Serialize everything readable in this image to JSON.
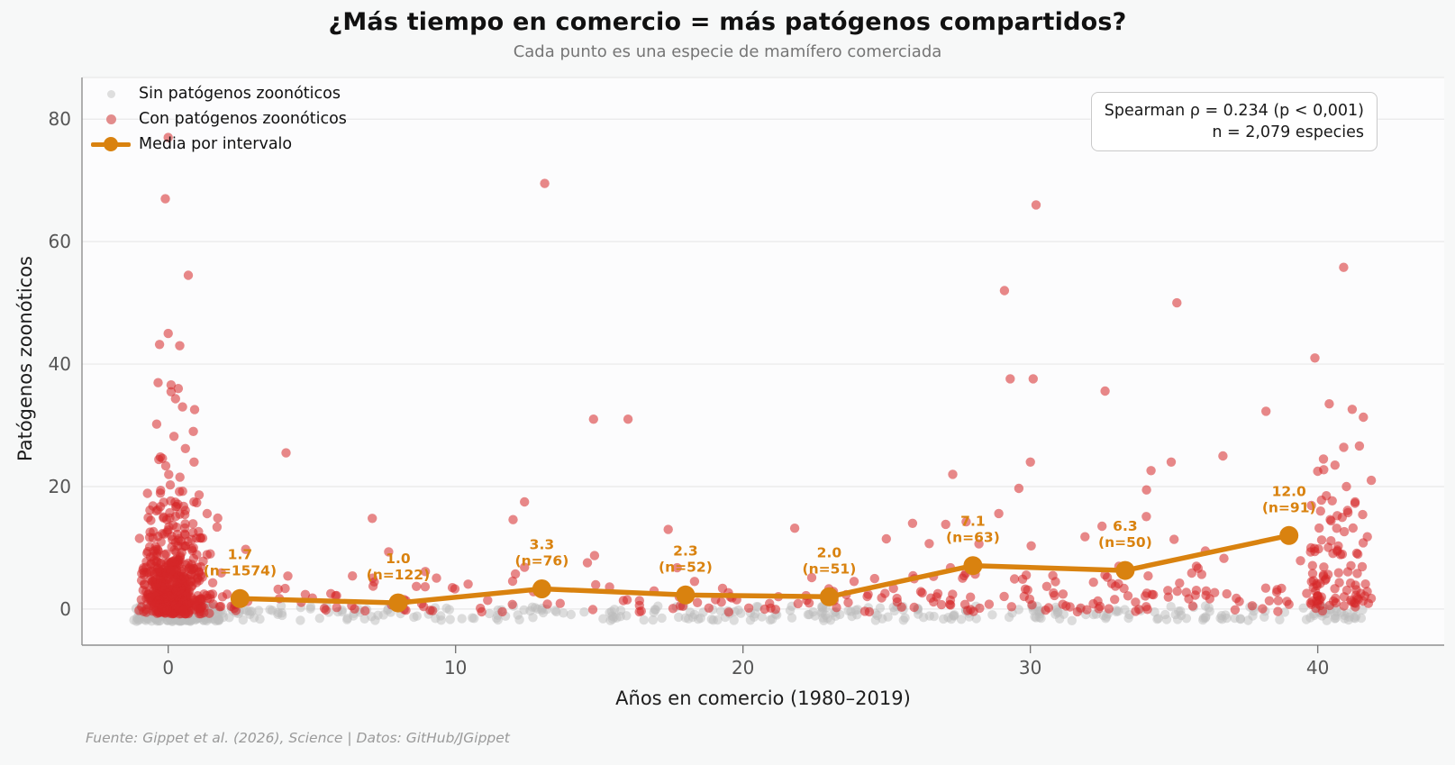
{
  "header": {
    "title": "¿Más tiempo en comercio = más patógenos compartidos?",
    "subtitle": "Cada punto es una especie de mamífero comerciada"
  },
  "legend": {
    "items": [
      {
        "id": "sin",
        "label": "Sin patógenos zoonóticos",
        "marker": "gray-dot",
        "color": "#bbbbbb"
      },
      {
        "id": "con",
        "label": "Con patógenos zoonóticos",
        "marker": "red-dot",
        "color": "#d62728"
      },
      {
        "id": "media",
        "label": "Media por intervalo",
        "marker": "orange-line-dot",
        "color": "#d9820f"
      }
    ]
  },
  "stats_box": {
    "line1": "Spearman ρ = 0.234 (p < 0,001)",
    "line2": "n = 2,079 especies"
  },
  "axes": {
    "xlabel": "Años en comercio (1980–2019)",
    "ylabel": "Patógenos zoonóticos"
  },
  "footer": {
    "source": "Fuente: Gippet et al. (2026), Science | Datos: GitHub/JGippet"
  },
  "colors": {
    "background": "#f7f8f8",
    "plot_background": "#fcfcfd",
    "grid": "#e9e9e9",
    "spine": "#8f8f8f",
    "red": "#d62728",
    "gray": "#bbbbbb",
    "orange": "#d9820f"
  },
  "chart_data": {
    "type": "scatter",
    "title": "¿Más tiempo en comercio = más patógenos compartidos?",
    "subtitle": "Cada punto es una especie de mamífero comerciada",
    "xlabel": "Años en comercio (1980–2019)",
    "ylabel": "Patógenos zoonóticos",
    "xlim": [
      -3.0,
      44.4
    ],
    "ylim": [
      -5.9,
      86.8
    ],
    "x_ticks": [
      0,
      10,
      20,
      30,
      40
    ],
    "y_ticks": [
      0,
      20,
      40,
      60,
      80
    ],
    "grid": "horizontal-only",
    "legend_position": "top-left",
    "stats": {
      "spearman_rho": 0.234,
      "p": "< 0,001",
      "n_species": 2079
    },
    "series": [
      {
        "name": "Sin patógenos zoonóticos",
        "type": "scatter",
        "color": "#bbbbbb"
      },
      {
        "name": "Con patógenos zoonóticos",
        "type": "scatter",
        "color": "#d62728"
      },
      {
        "name": "Media por intervalo",
        "type": "line",
        "color": "#d9820f"
      }
    ],
    "trend": {
      "bin_width_years": 5,
      "points": [
        {
          "x": 2.5,
          "y": 1.7,
          "n": 1574,
          "value_label": "1.7",
          "n_label": "(n=1574)"
        },
        {
          "x": 8.0,
          "y": 1.0,
          "n": 122,
          "value_label": "1.0",
          "n_label": "(n=122)"
        },
        {
          "x": 13.0,
          "y": 3.3,
          "n": 76,
          "value_label": "3.3",
          "n_label": "(n=76)"
        },
        {
          "x": 18.0,
          "y": 2.3,
          "n": 52,
          "value_label": "2.3",
          "n_label": "(n=52)"
        },
        {
          "x": 23.0,
          "y": 2.0,
          "n": 51,
          "value_label": "2.0",
          "n_label": "(n=51)"
        },
        {
          "x": 28.0,
          "y": 7.1,
          "n": 63,
          "value_label": "7.1",
          "n_label": "(n=63)"
        },
        {
          "x": 33.3,
          "y": 6.3,
          "n": 50,
          "value_label": "6.3",
          "n_label": "(n=50)"
        },
        {
          "x": 39.0,
          "y": 12.0,
          "n": 91,
          "value_label": "12.0",
          "n_label": "(n=91)"
        }
      ]
    },
    "red_outliers": [
      [
        0,
        77
      ],
      [
        -0.1,
        67
      ],
      [
        0.7,
        54.5
      ],
      [
        0,
        45
      ],
      [
        -0.3,
        43.2
      ],
      [
        0.4,
        43
      ],
      [
        0.1,
        36.6
      ],
      [
        0.35,
        36.0
      ],
      [
        0.5,
        33
      ],
      [
        -0.4,
        30.2
      ],
      [
        0.2,
        28.2
      ],
      [
        0.6,
        26.2
      ],
      [
        -0.2,
        24.6
      ],
      [
        0.9,
        24
      ],
      [
        4.1,
        25.5
      ],
      [
        7.1,
        14.8
      ],
      [
        13.1,
        69.5
      ],
      [
        12.4,
        17.5
      ],
      [
        12.0,
        14.6
      ],
      [
        14.8,
        31
      ],
      [
        16,
        31
      ],
      [
        17.4,
        13
      ],
      [
        21.8,
        13.2
      ],
      [
        27.3,
        22
      ],
      [
        25.9,
        14
      ],
      [
        28.9,
        15.6
      ],
      [
        29.1,
        52
      ],
      [
        30.2,
        66
      ],
      [
        29.3,
        37.6
      ],
      [
        30.1,
        37.6
      ],
      [
        30.0,
        24
      ],
      [
        29.6,
        19.7
      ],
      [
        31.9,
        11.8
      ],
      [
        32.6,
        35.6
      ],
      [
        34.2,
        22.6
      ],
      [
        34.9,
        24
      ],
      [
        35.1,
        50
      ],
      [
        36.7,
        25
      ],
      [
        38.2,
        32.3
      ],
      [
        39.9,
        41
      ],
      [
        40.9,
        55.8
      ],
      [
        40.4,
        33.5
      ],
      [
        41.2,
        32.6
      ],
      [
        40.2,
        24.5
      ],
      [
        40.6,
        23.5
      ],
      [
        40.0,
        22.5
      ],
      [
        41.0,
        20
      ],
      [
        40.3,
        18.5
      ],
      [
        41.3,
        17.5
      ],
      [
        40.1,
        16
      ]
    ],
    "scatter_spec": {
      "seed": 7,
      "point_radius": 5.2,
      "styles": {
        "gray": {
          "fill": "#bbbbbb",
          "opacity": 0.5
        },
        "red": {
          "fill": "#d62728",
          "opacity": 0.55
        }
      },
      "clusters": [
        {
          "series": "gray",
          "count": 380,
          "x": {
            "type": "normal",
            "mean": 0.3,
            "sd": 0.8,
            "clamp": [
              -1.2,
              2.5
            ]
          },
          "y": {
            "type": "uniform",
            "min": -2.0,
            "max": 0.6
          }
        },
        {
          "series": "gray",
          "count": 300,
          "x": {
            "type": "uniform",
            "min": 1.0,
            "max": 41.6
          },
          "y": {
            "type": "uniform",
            "min": -1.9,
            "max": 0.5
          }
        },
        {
          "series": "gray",
          "count": 25,
          "x": {
            "type": "uniform",
            "min": 39.6,
            "max": 41.6
          },
          "y": {
            "type": "uniform",
            "min": -1.6,
            "max": 0.4
          }
        },
        {
          "series": "red",
          "count": 520,
          "x": {
            "type": "normal",
            "mean": 0.15,
            "sd": 0.55,
            "clamp": [
              -1.05,
              3.0
            ]
          },
          "y": {
            "type": "exp",
            "scale": 6.5,
            "max": 45,
            "offset": -0.8
          }
        },
        {
          "series": "red",
          "count": 205,
          "x": {
            "type": "uniform",
            "min": 0.8,
            "max": 41.5
          },
          "y": {
            "type": "exp",
            "scale": 3.2,
            "max": 17,
            "offset": -0.5
          }
        },
        {
          "series": "red",
          "count": 55,
          "x": {
            "type": "uniform",
            "min": 24.0,
            "max": 36.5
          },
          "y": {
            "type": "exp",
            "scale": 6.0,
            "max": 26,
            "offset": 0
          }
        },
        {
          "series": "red",
          "count": 85,
          "x": {
            "type": "uniform",
            "min": 39.7,
            "max": 41.9
          },
          "y": {
            "type": "exp",
            "scale": 9.0,
            "max": 32,
            "offset": 0.2
          }
        }
      ]
    }
  }
}
